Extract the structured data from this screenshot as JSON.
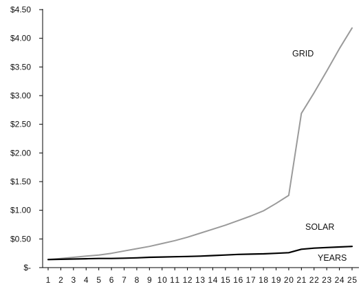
{
  "chart_data": {
    "type": "line",
    "title": "",
    "xlabel": "",
    "ylabel": "",
    "categories": [
      "1",
      "2",
      "3",
      "4",
      "5",
      "6",
      "7",
      "8",
      "9",
      "10",
      "11",
      "12",
      "13",
      "14",
      "15",
      "16",
      "17",
      "18",
      "19",
      "20",
      "21",
      "22",
      "23",
      "24",
      "25"
    ],
    "ylim": [
      0,
      4.5
    ],
    "y_ticks": [
      0,
      0.5,
      1.0,
      1.5,
      2.0,
      2.5,
      3.0,
      3.5,
      4.0,
      4.5
    ],
    "y_tick_labels": [
      "$-",
      "$0.50",
      "$1.00",
      "$1.50",
      "$2.00",
      "$2.50",
      "$3.00",
      "$3.50",
      "$4.00",
      "$4.50"
    ],
    "grid": false,
    "legend": "none",
    "series": [
      {
        "name": "GRID",
        "color": "#9a9a9a",
        "values": [
          0.14,
          0.16,
          0.18,
          0.2,
          0.22,
          0.25,
          0.29,
          0.33,
          0.37,
          0.42,
          0.47,
          0.53,
          0.6,
          0.67,
          0.74,
          0.82,
          0.9,
          0.99,
          1.12,
          1.26,
          2.69,
          3.05,
          3.43,
          3.82,
          4.18
        ]
      },
      {
        "name": "SOLAR",
        "color": "#000000",
        "values": [
          0.14,
          0.145,
          0.15,
          0.155,
          0.16,
          0.16,
          0.165,
          0.17,
          0.18,
          0.185,
          0.19,
          0.195,
          0.2,
          0.21,
          0.22,
          0.23,
          0.235,
          0.24,
          0.25,
          0.26,
          0.32,
          0.34,
          0.35,
          0.36,
          0.37
        ]
      }
    ],
    "annotations": [
      "GRID",
      "SOLAR",
      "YEARS"
    ]
  }
}
